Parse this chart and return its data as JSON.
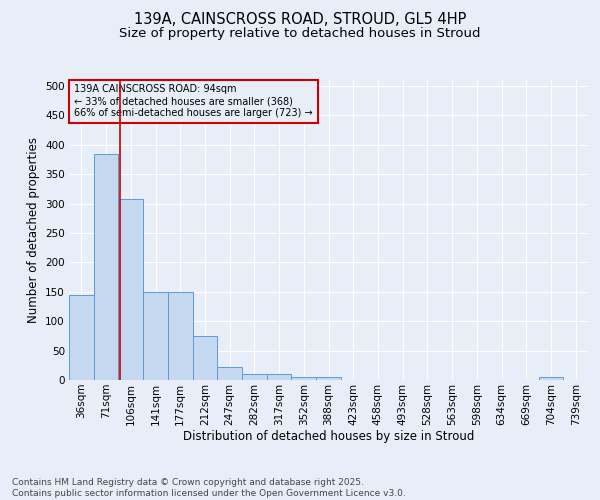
{
  "title1": "139A, CAINSCROSS ROAD, STROUD, GL5 4HP",
  "title2": "Size of property relative to detached houses in Stroud",
  "xlabel": "Distribution of detached houses by size in Stroud",
  "ylabel": "Number of detached properties",
  "bin_labels": [
    "36sqm",
    "71sqm",
    "106sqm",
    "141sqm",
    "177sqm",
    "212sqm",
    "247sqm",
    "282sqm",
    "317sqm",
    "352sqm",
    "388sqm",
    "423sqm",
    "458sqm",
    "493sqm",
    "528sqm",
    "563sqm",
    "598sqm",
    "634sqm",
    "669sqm",
    "704sqm",
    "739sqm"
  ],
  "bar_heights": [
    145,
    385,
    308,
    150,
    150,
    75,
    22,
    10,
    10,
    5,
    5,
    0,
    0,
    0,
    0,
    0,
    0,
    0,
    0,
    5,
    0
  ],
  "bar_color": "#c5d8f0",
  "bar_edge_color": "#5b9bd5",
  "vline_x": 1.56,
  "vline_color": "#cc0000",
  "annotation_line1": "139A CAINSCROSS ROAD: 94sqm",
  "annotation_line2": "← 33% of detached houses are smaller (368)",
  "annotation_line3": "66% of semi-detached houses are larger (723) →",
  "annotation_box_color": "#cc0000",
  "annotation_text_color": "#000000",
  "ylim": [
    0,
    510
  ],
  "yticks": [
    0,
    50,
    100,
    150,
    200,
    250,
    300,
    350,
    400,
    450,
    500
  ],
  "background_color": "#e8eef8",
  "grid_color": "#ffffff",
  "footer_line1": "Contains HM Land Registry data © Crown copyright and database right 2025.",
  "footer_line2": "Contains public sector information licensed under the Open Government Licence v3.0.",
  "title_fontsize": 10.5,
  "subtitle_fontsize": 9.5,
  "axis_label_fontsize": 8.5,
  "tick_fontsize": 7.5,
  "annotation_fontsize": 7,
  "footer_fontsize": 6.5
}
